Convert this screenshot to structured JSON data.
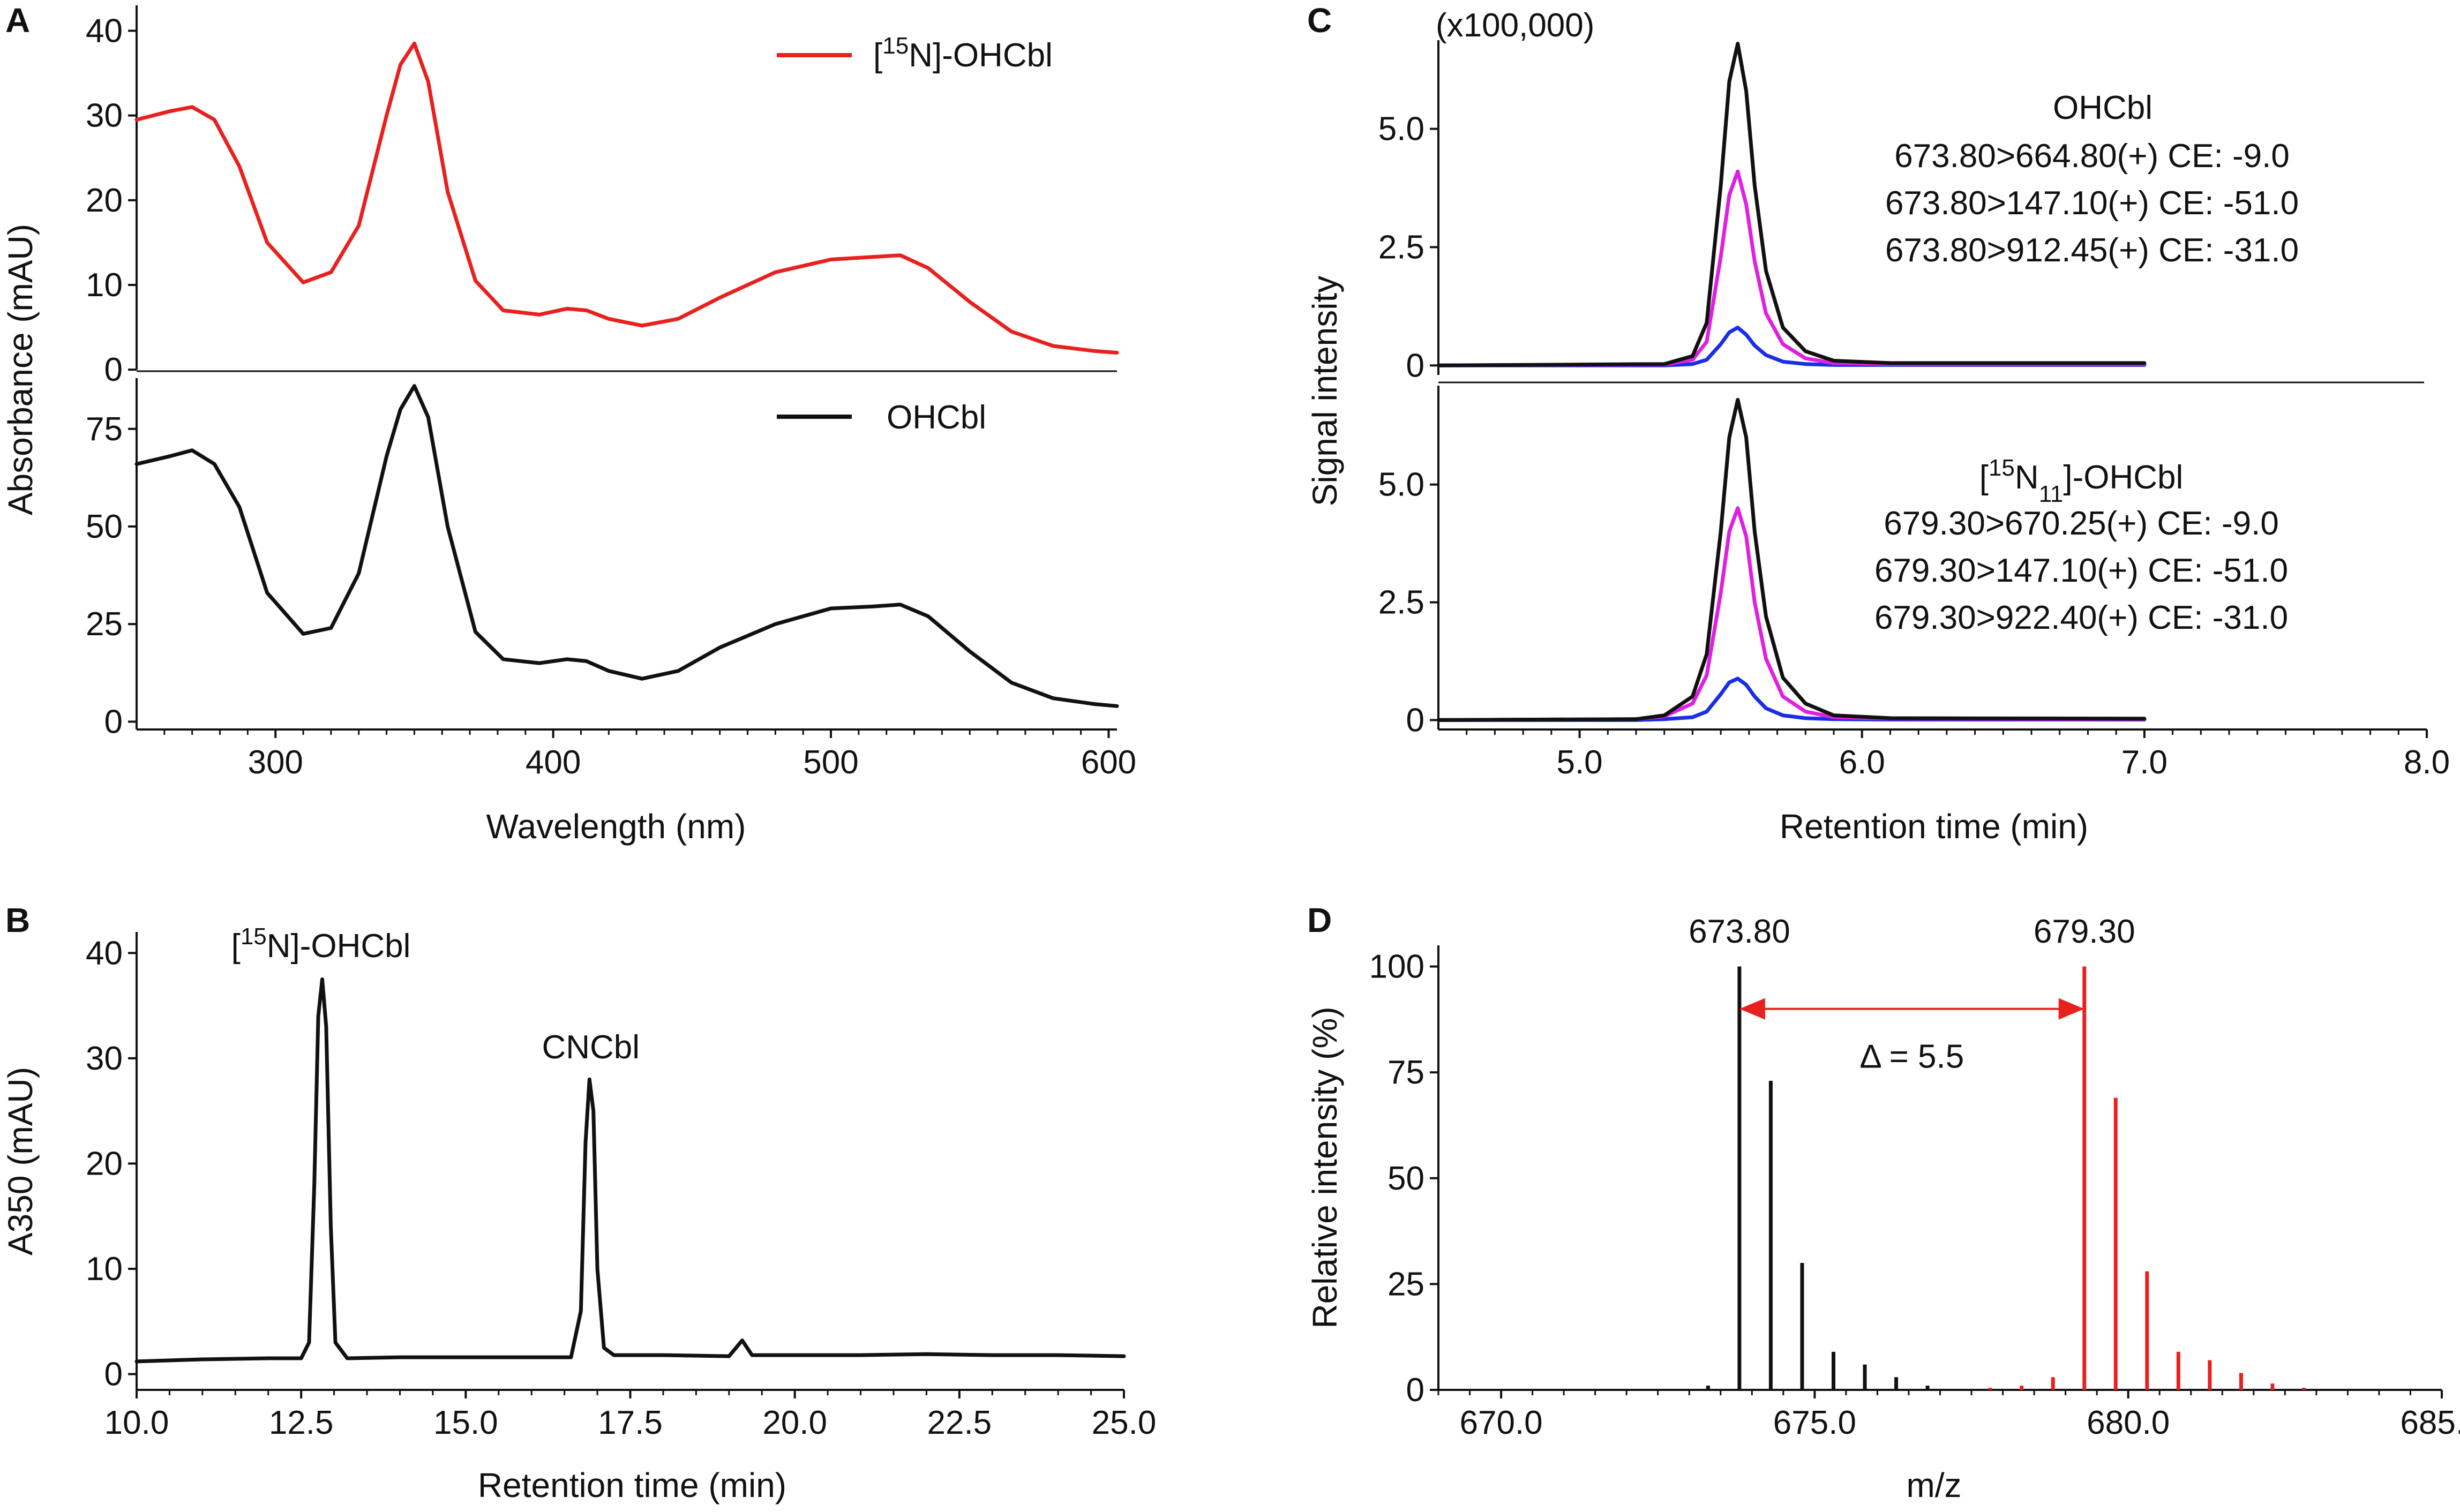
{
  "chart_data": [
    {
      "panel": "A",
      "type": "line",
      "title": "",
      "xlabel": "Wavelength (nm)",
      "ylabel": "Absorbance (mAU)",
      "xlim": [
        250,
        603
      ],
      "x_ticks": [
        300,
        400,
        500,
        600
      ],
      "x_tick_labels": [
        "300",
        "400",
        "500",
        "600"
      ],
      "subplots": [
        {
          "name": "[15N]-OHCbl",
          "legend_prefix": "[",
          "legend_superscript": "15",
          "legend_suffix": "N]-OHCbl",
          "color": "#e8211f",
          "ylim": [
            -1,
            43
          ],
          "y_ticks": [
            0,
            10,
            20,
            30,
            40
          ],
          "y_tick_labels": [
            "0",
            "10",
            "20",
            "30",
            "40"
          ],
          "x": [
            250,
            262,
            270,
            278,
            287,
            297,
            310,
            320,
            330,
            340,
            345,
            350,
            355,
            362,
            372,
            382,
            395,
            405,
            412,
            420,
            432,
            445,
            460,
            480,
            500,
            515,
            525,
            535,
            550,
            565,
            580,
            595,
            603
          ],
          "y": [
            29.5,
            30.5,
            31,
            29.5,
            24,
            15,
            10.3,
            11.5,
            17,
            30,
            36,
            38.5,
            34,
            21,
            10.5,
            7,
            6.5,
            7.2,
            7,
            6,
            5.2,
            6,
            8.5,
            11.5,
            13,
            13.3,
            13.5,
            12,
            8,
            4.5,
            2.8,
            2.2,
            2
          ]
        },
        {
          "name": "OHCbl",
          "legend_label": "OHCbl",
          "color": "#111111",
          "ylim": [
            -2,
            88
          ],
          "y_ticks": [
            0,
            25,
            50,
            75
          ],
          "y_tick_labels": [
            "0",
            "25",
            "50",
            "75"
          ],
          "x": [
            250,
            262,
            270,
            278,
            287,
            297,
            310,
            320,
            330,
            340,
            345,
            350,
            355,
            362,
            372,
            382,
            395,
            405,
            412,
            420,
            432,
            445,
            460,
            480,
            500,
            515,
            525,
            535,
            550,
            565,
            580,
            595,
            603
          ],
          "y": [
            66,
            68,
            69.5,
            66,
            55,
            33,
            22.5,
            24,
            38,
            68,
            80,
            86,
            78,
            50,
            23,
            16,
            15,
            16,
            15.5,
            13,
            11,
            13,
            19,
            25,
            29,
            29.5,
            30,
            27,
            18,
            10,
            6,
            4.5,
            4
          ]
        }
      ]
    },
    {
      "panel": "B",
      "type": "line",
      "title": "",
      "xlabel": "Retention time (min)",
      "ylabel": "A350 (mAU)",
      "xlim": [
        10,
        25
      ],
      "ylim": [
        -1.5,
        42
      ],
      "x_ticks": [
        10,
        12.5,
        15,
        17.5,
        20,
        22.5,
        25
      ],
      "x_tick_labels": [
        "10.0",
        "12.5",
        "15.0",
        "17.5",
        "20.0",
        "22.5",
        "25.0"
      ],
      "y_ticks": [
        0,
        10,
        20,
        30,
        40
      ],
      "y_tick_labels": [
        "0",
        "10",
        "20",
        "30",
        "40"
      ],
      "series": [
        {
          "name": "A350 trace",
          "color": "#111111",
          "x": [
            10,
            11,
            12,
            12.5,
            12.62,
            12.7,
            12.76,
            12.82,
            12.88,
            12.95,
            13.02,
            13.2,
            14,
            15,
            16,
            16.6,
            16.75,
            16.82,
            16.88,
            16.94,
            17.0,
            17.1,
            17.25,
            18,
            19.0,
            19.2,
            19.35,
            19.6,
            20,
            21,
            22,
            23,
            24,
            25
          ],
          "y": [
            1.2,
            1.4,
            1.5,
            1.5,
            3,
            18,
            34,
            37.5,
            33,
            14,
            3,
            1.5,
            1.6,
            1.6,
            1.6,
            1.6,
            6,
            22,
            28,
            25,
            10,
            2.5,
            1.8,
            1.8,
            1.7,
            3.2,
            1.8,
            1.8,
            1.8,
            1.8,
            1.9,
            1.8,
            1.8,
            1.7
          ]
        }
      ],
      "annotations": [
        {
          "prefix": "[",
          "sup": "15",
          "text": "N]-OHCbl",
          "x": 12.8,
          "y": 39.6
        },
        {
          "prefix": "",
          "sup": "",
          "text": "CNCbl",
          "x": 16.9,
          "y": 30.0
        }
      ]
    },
    {
      "panel": "C",
      "type": "line",
      "title": "",
      "multiplier_label": "(x100,000)",
      "xlabel": "Retention time (min)",
      "ylabel": "Signal intensity",
      "xlim": [
        4.5,
        8.0
      ],
      "x_ticks": [
        5.0,
        6.0,
        7.0,
        8.0
      ],
      "x_tick_labels": [
        "5.0",
        "6.0",
        "7.0",
        "8.0"
      ],
      "subplots": [
        {
          "heading": "OHCbl",
          "ylim": [
            -0.2,
            7.1
          ],
          "y_ticks": [
            0,
            2.5,
            5.0
          ],
          "y_tick_labels": [
            "0",
            "2.5",
            "5.0"
          ],
          "series": [
            {
              "name": "673.80>664.80(+) CE: -9.0",
              "color": "#111111",
              "x": [
                4.5,
                5.3,
                5.4,
                5.45,
                5.5,
                5.53,
                5.56,
                5.59,
                5.62,
                5.66,
                5.72,
                5.8,
                5.9,
                6.1,
                7.0
              ],
              "y": [
                0,
                0.03,
                0.2,
                0.9,
                3.8,
                6.0,
                6.8,
                5.8,
                3.8,
                2.0,
                0.8,
                0.3,
                0.1,
                0.05,
                0.05
              ]
            },
            {
              "name": "673.80>147.10(+) CE: -51.0",
              "color": "#e020e0",
              "x": [
                4.5,
                5.3,
                5.4,
                5.45,
                5.5,
                5.53,
                5.56,
                5.59,
                5.62,
                5.66,
                5.72,
                5.8,
                5.9,
                6.1,
                7.0
              ],
              "y": [
                0,
                0.02,
                0.12,
                0.5,
                2.3,
                3.6,
                4.1,
                3.4,
                2.2,
                1.1,
                0.45,
                0.15,
                0.05,
                0.03,
                0.03
              ]
            },
            {
              "name": "673.80>912.45(+) CE: -31.0",
              "color": "#1a2ee8",
              "x": [
                4.5,
                5.3,
                5.4,
                5.45,
                5.5,
                5.53,
                5.56,
                5.59,
                5.62,
                5.66,
                5.72,
                5.8,
                5.9,
                6.1,
                7.0
              ],
              "y": [
                0,
                0.0,
                0.03,
                0.12,
                0.45,
                0.7,
                0.8,
                0.65,
                0.42,
                0.22,
                0.08,
                0.03,
                0.01,
                0.01,
                0.01
              ]
            }
          ]
        },
        {
          "heading_prefix": "[",
          "heading_sup": "15",
          "heading_main": "N",
          "heading_sub": "11",
          "heading_suffix": "]-OHCbl",
          "ylim": [
            -0.2,
            7.1
          ],
          "y_ticks": [
            0,
            2.5,
            5.0
          ],
          "y_tick_labels": [
            "0",
            "2.5",
            "5.0"
          ],
          "series": [
            {
              "name": "679.30>670.25(+) CE: -9.0",
              "color": "#111111",
              "x": [
                4.5,
                5.2,
                5.3,
                5.4,
                5.45,
                5.5,
                5.53,
                5.56,
                5.59,
                5.62,
                5.66,
                5.72,
                5.8,
                5.9,
                6.1,
                7.0
              ],
              "y": [
                0,
                0.02,
                0.1,
                0.5,
                1.4,
                4.0,
                6.0,
                6.8,
                6.0,
                4.0,
                2.2,
                0.9,
                0.35,
                0.1,
                0.04,
                0.03
              ]
            },
            {
              "name": "679.30>147.10(+) CE: -51.0",
              "color": "#e020e0",
              "x": [
                4.5,
                5.2,
                5.3,
                5.4,
                5.45,
                5.5,
                5.53,
                5.56,
                5.59,
                5.62,
                5.66,
                5.72,
                5.8,
                5.9,
                6.1,
                7.0
              ],
              "y": [
                0,
                0.02,
                0.08,
                0.35,
                0.95,
                2.7,
                4.0,
                4.5,
                3.9,
                2.5,
                1.3,
                0.5,
                0.18,
                0.06,
                0.03,
                0.02
              ]
            },
            {
              "name": "679.30>922.40(+) CE: -31.0",
              "color": "#1a2ee8",
              "x": [
                4.5,
                5.2,
                5.3,
                5.4,
                5.45,
                5.5,
                5.53,
                5.56,
                5.59,
                5.62,
                5.66,
                5.72,
                5.8,
                5.9,
                6.1,
                7.0
              ],
              "y": [
                0,
                0.0,
                0.02,
                0.06,
                0.18,
                0.55,
                0.8,
                0.88,
                0.75,
                0.5,
                0.25,
                0.1,
                0.04,
                0.02,
                0.01,
                0.01
              ]
            }
          ]
        }
      ]
    },
    {
      "panel": "D",
      "type": "bar",
      "title": "",
      "xlabel": "m/z",
      "ylabel": "Relative intensity (%)",
      "xlim": [
        669,
        685
      ],
      "ylim": [
        0,
        105
      ],
      "x_ticks": [
        670,
        675,
        680,
        685
      ],
      "x_tick_labels": [
        "670.0",
        "675.0",
        "680.0",
        "685.0"
      ],
      "y_ticks": [
        0,
        25,
        50,
        75,
        100
      ],
      "y_tick_labels": [
        "0",
        "25",
        "50",
        "75",
        "100"
      ],
      "series": [
        {
          "name": "OHCbl",
          "color": "#111111",
          "x": [
            673.3,
            673.8,
            674.3,
            674.8,
            675.3,
            675.8,
            676.3,
            676.8
          ],
          "y": [
            1,
            100,
            73,
            30,
            9,
            6,
            3,
            1
          ]
        },
        {
          "name": "[15N11]-OHCbl",
          "color": "#e8211f",
          "x": [
            677.8,
            678.3,
            678.8,
            679.3,
            679.8,
            680.3,
            680.8,
            681.3,
            681.8,
            682.3,
            682.8
          ],
          "y": [
            0.5,
            1,
            3,
            100,
            69,
            28,
            9,
            7,
            4,
            1.5,
            0.5
          ]
        }
      ],
      "peak_labels": [
        {
          "text": "673.80",
          "x": 673.8,
          "color": "#1a2ee8"
        },
        {
          "text": "679.30",
          "x": 679.3,
          "color": "#1a2ee8"
        }
      ],
      "delta_annotation": {
        "text": "Δ = 5.5",
        "from": 673.8,
        "to": 679.3,
        "y": 90,
        "color": "#e8211f"
      }
    }
  ]
}
